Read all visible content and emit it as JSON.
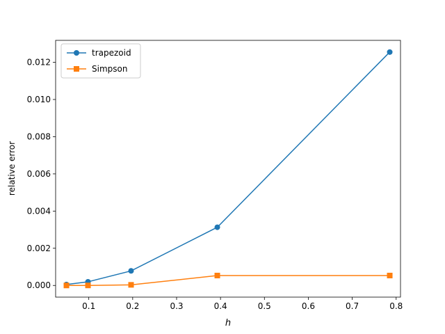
{
  "chart_data": {
    "type": "line",
    "title": "",
    "xlabel": "h",
    "ylabel": "relative error",
    "xlim": [
      0.0245,
      0.8099
    ],
    "ylim": [
      -0.000627,
      0.01318
    ],
    "xticks": [
      0.1,
      0.2,
      0.3,
      0.4,
      0.5,
      0.6,
      0.7,
      0.8
    ],
    "xtick_labels": [
      "0.1",
      "0.2",
      "0.3",
      "0.4",
      "0.5",
      "0.6",
      "0.7",
      "0.8"
    ],
    "yticks": [
      0.0,
      0.002,
      0.004,
      0.006,
      0.008,
      0.01,
      0.012
    ],
    "ytick_labels": [
      "0.000",
      "0.002",
      "0.004",
      "0.006",
      "0.008",
      "0.010",
      "0.012"
    ],
    "grid": false,
    "legend_position": "upper-left",
    "series": [
      {
        "name": "trapezoid",
        "color": "#1f77b4",
        "marker": "circle",
        "x": [
          0.0491,
          0.0982,
          0.1963,
          0.3927,
          0.7854
        ],
        "y": [
          4.91e-05,
          0.000196,
          0.000785,
          0.00313,
          0.01255
        ]
      },
      {
        "name": "Simpson",
        "color": "#ff7f0e",
        "marker": "square",
        "x": [
          0.0491,
          0.0982,
          0.1963,
          0.3927,
          0.7854
        ],
        "y": [
          1.3e-07,
          2.1e-06,
          3.34e-05,
          0.000534,
          0.000534
        ]
      }
    ]
  }
}
